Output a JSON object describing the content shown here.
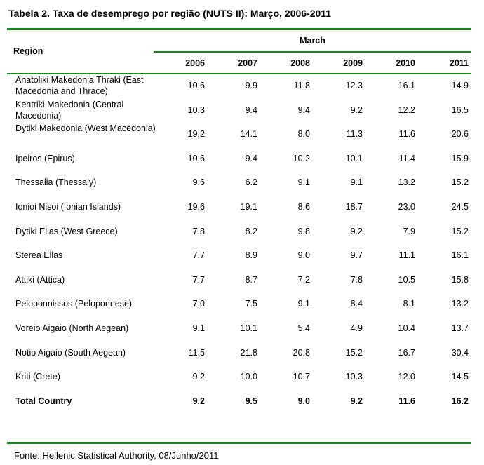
{
  "title": "Tabela 2. Taxa de desemprego por região (NUTS II): Março, 2006-2011",
  "header": {
    "region": "Region",
    "group": "March",
    "years": [
      "2006",
      "2007",
      "2008",
      "2009",
      "2010",
      "2011"
    ]
  },
  "rows": [
    {
      "region": "Anatoliki Makedonia Thraki (East Macedonia and Thrace)",
      "values": [
        "10.6",
        "9.9",
        "11.8",
        "12.3",
        "16.1",
        "14.9"
      ]
    },
    {
      "region": "Kentriki Makedonia (Central Macedonia)",
      "values": [
        "10.3",
        "9.4",
        "9.4",
        "9.2",
        "12.2",
        "16.5"
      ]
    },
    {
      "region": "Dytiki Makedonia (West Macedonia)",
      "values": [
        "19.2",
        "14.1",
        "8.0",
        "11.3",
        "11.6",
        "20.6"
      ]
    },
    {
      "region": "Ipeiros (Epirus)",
      "values": [
        "10.6",
        "9.4",
        "10.2",
        "10.1",
        "11.4",
        "15.9"
      ]
    },
    {
      "region": "Thessalia (Thessaly)",
      "values": [
        "9.6",
        "6.2",
        "9.1",
        "9.1",
        "13.2",
        "15.2"
      ]
    },
    {
      "region": "Ionioi Nisoi (Ionian Islands)",
      "values": [
        "19.6",
        "19.1",
        "8.6",
        "18.7",
        "23.0",
        "24.5"
      ]
    },
    {
      "region": "Dytiki Ellas (West Greece)",
      "values": [
        "7.8",
        "8.2",
        "9.8",
        "9.2",
        "7.9",
        "15.2"
      ]
    },
    {
      "region": "Sterea Ellas",
      "values": [
        "7.7",
        "8.9",
        "9.0",
        "9.7",
        "11.1",
        "16.1"
      ]
    },
    {
      "region": "Attiki (Attica)",
      "values": [
        "7.7",
        "8.7",
        "7.2",
        "7.8",
        "10.5",
        "15.8"
      ]
    },
    {
      "region": "Peloponnissos (Peloponnese)",
      "values": [
        "7.0",
        "7.5",
        "9.1",
        "8.4",
        "8.1",
        "13.2"
      ]
    },
    {
      "region": "Voreio Aigaio (North Aegean)",
      "values": [
        "9.1",
        "10.1",
        "5.4",
        "4.9",
        "10.4",
        "13.7"
      ]
    },
    {
      "region": "Notio Aigaio (South Aegean)",
      "values": [
        "11.5",
        "21.8",
        "20.8",
        "15.2",
        "16.7",
        "30.4"
      ]
    },
    {
      "region": "Kriti (Crete)",
      "values": [
        "9.2",
        "10.0",
        "10.7",
        "10.3",
        "12.0",
        "14.5"
      ]
    },
    {
      "region": "Total Country",
      "values": [
        "9.2",
        "9.5",
        "9.0",
        "9.2",
        "11.6",
        "16.2"
      ]
    }
  ],
  "source": "Fonte: Hellenic Statistical Authority, 08/Junho/2011"
}
